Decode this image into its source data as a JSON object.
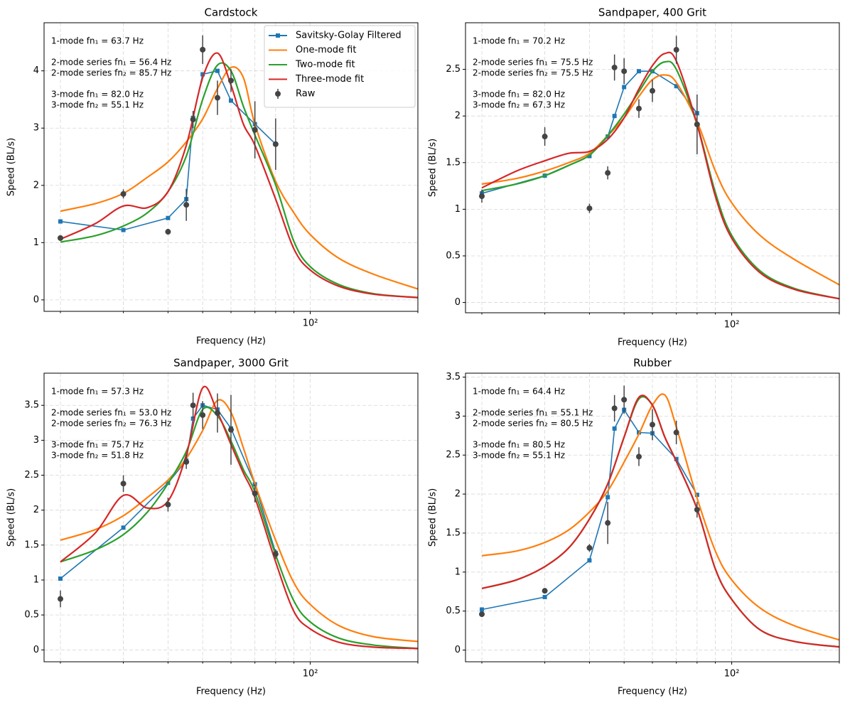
{
  "chart_data": [
    {
      "type": "line",
      "title": "Cardstock",
      "x_label": "Frequency (Hz)",
      "y_label": "Speed (BL/s)",
      "log_x": true,
      "grid": true,
      "legend": "upper right",
      "xlim": [
        18,
        200
      ],
      "xticks": [
        {
          "value": 100,
          "label": "10²"
        }
      ],
      "xminorticks": [
        20,
        30,
        40,
        50,
        60,
        70,
        80,
        90,
        200
      ],
      "ylim": [
        -0.2,
        4.84
      ],
      "yticks": [
        0,
        1,
        2,
        3,
        4
      ],
      "annotations": [
        [
          "1-mode fn₁ = 63.7 Hz"
        ],
        [
          "2-mode series fn₁ = 56.4 Hz",
          "2-mode series fn₂ = 85.7 Hz"
        ],
        [
          "3-mode fn₁ = 82.0 Hz",
          "3-mode fn₂ = 55.1 Hz"
        ]
      ],
      "series": [
        {
          "name": "Savitsky-Golay Filtered",
          "color": "#1f77b4",
          "style": "line-square",
          "x": [
            20,
            30,
            40,
            45,
            47,
            50,
            55,
            60,
            70,
            80
          ],
          "values": [
            1.37,
            1.22,
            1.43,
            1.76,
            3.18,
            3.94,
            4.0,
            3.48,
            3.07,
            2.72
          ]
        },
        {
          "name": "One-mode fit",
          "color": "#ff7f0e",
          "style": "line",
          "x": [
            20,
            25,
            30,
            35,
            40,
            45,
            50,
            55,
            60,
            65,
            70,
            80,
            90,
            100,
            120,
            150,
            200
          ],
          "values": [
            1.55,
            1.68,
            1.86,
            2.14,
            2.41,
            2.76,
            3.16,
            3.69,
            4.06,
            3.88,
            3.07,
            2.07,
            1.52,
            1.14,
            0.73,
            0.45,
            0.19
          ]
        },
        {
          "name": "Two-mode fit",
          "color": "#2ca02c",
          "style": "line",
          "x": [
            20,
            25,
            30,
            35,
            40,
            45,
            50,
            55,
            60,
            65,
            70,
            80,
            90,
            100,
            120,
            150,
            200
          ],
          "values": [
            1.01,
            1.12,
            1.29,
            1.52,
            1.89,
            2.51,
            3.5,
            4.1,
            4.0,
            3.38,
            2.88,
            2.01,
            1.02,
            0.58,
            0.27,
            0.11,
            0.04
          ]
        },
        {
          "name": "Three-mode fit",
          "color": "#d62728",
          "style": "line",
          "x": [
            20,
            25,
            30,
            35,
            40,
            45,
            50,
            55,
            60,
            65,
            70,
            80,
            90,
            100,
            120,
            150,
            200
          ],
          "values": [
            1.06,
            1.33,
            1.64,
            1.61,
            1.89,
            2.7,
            3.88,
            4.31,
            3.75,
            3.07,
            2.7,
            1.76,
            0.89,
            0.52,
            0.24,
            0.1,
            0.04
          ]
        },
        {
          "name": "Raw",
          "color": "#444444",
          "style": "points-errorbar",
          "x": [
            20,
            30,
            40,
            45,
            47,
            50,
            55,
            60,
            70,
            80
          ],
          "values": [
            1.08,
            1.85,
            1.19,
            1.66,
            3.15,
            4.37,
            3.53,
            3.83,
            2.97,
            2.72
          ],
          "errors": [
            0.05,
            0.08,
            0.05,
            0.28,
            0.15,
            0.25,
            0.3,
            0.2,
            0.5,
            0.45
          ]
        }
      ]
    },
    {
      "type": "line",
      "title": "Sandpaper, 400 Grit",
      "x_label": "Frequency (Hz)",
      "y_label": "Speed (BL/s)",
      "log_x": true,
      "grid": true,
      "xlim": [
        18,
        200
      ],
      "xticks": [
        {
          "value": 100,
          "label": "10²"
        }
      ],
      "xminorticks": [
        20,
        30,
        40,
        50,
        60,
        70,
        80,
        90,
        200
      ],
      "ylim": [
        -0.11,
        3.0
      ],
      "yticks": [
        0.0,
        0.5,
        1.0,
        1.5,
        2.0,
        2.5
      ],
      "annotations": [
        [
          "1-mode fn₁ = 70.2 Hz"
        ],
        [
          "2-mode series fn₁ = 75.5 Hz",
          "2-mode series fn₂ = 75.5 Hz"
        ],
        [
          "3-mode fn₁ = 82.0 Hz",
          "3-mode fn₂ = 67.3 Hz"
        ]
      ],
      "series": [
        {
          "color": "#1f77b4",
          "style": "line-square",
          "x": [
            20,
            30,
            40,
            45,
            47,
            50,
            55,
            60,
            70,
            80
          ],
          "values": [
            1.17,
            1.36,
            1.57,
            1.78,
            2.0,
            2.31,
            2.48,
            2.48,
            2.32,
            2.03
          ]
        },
        {
          "color": "#ff7f0e",
          "style": "line",
          "x": [
            20,
            25,
            30,
            35,
            40,
            45,
            50,
            55,
            60,
            65,
            70,
            80,
            90,
            100,
            120,
            150,
            200
          ],
          "values": [
            1.27,
            1.33,
            1.41,
            1.5,
            1.6,
            1.79,
            1.98,
            2.21,
            2.39,
            2.44,
            2.36,
            1.94,
            1.41,
            1.07,
            0.72,
            0.46,
            0.19
          ]
        },
        {
          "color": "#2ca02c",
          "style": "line",
          "x": [
            20,
            25,
            30,
            35,
            40,
            45,
            50,
            55,
            60,
            65,
            70,
            80,
            90,
            100,
            120,
            150,
            200
          ],
          "values": [
            1.2,
            1.27,
            1.36,
            1.47,
            1.58,
            1.79,
            2.02,
            2.26,
            2.48,
            2.58,
            2.5,
            1.91,
            1.18,
            0.72,
            0.34,
            0.15,
            0.04
          ]
        },
        {
          "color": "#d62728",
          "style": "line",
          "x": [
            20,
            25,
            30,
            35,
            40,
            45,
            50,
            55,
            60,
            65,
            70,
            80,
            90,
            100,
            120,
            150,
            200
          ],
          "values": [
            1.23,
            1.41,
            1.52,
            1.6,
            1.62,
            1.75,
            1.98,
            2.29,
            2.54,
            2.67,
            2.59,
            1.91,
            1.14,
            0.69,
            0.32,
            0.14,
            0.04
          ]
        },
        {
          "color": "#444444",
          "style": "points-errorbar",
          "x": [
            20,
            30,
            40,
            45,
            47,
            50,
            55,
            60,
            70,
            80
          ],
          "values": [
            1.14,
            1.78,
            1.01,
            1.39,
            2.52,
            2.48,
            2.08,
            2.27,
            2.71,
            1.91
          ],
          "errors": [
            0.07,
            0.1,
            0.05,
            0.07,
            0.14,
            0.14,
            0.1,
            0.12,
            0.15,
            0.32
          ]
        }
      ]
    },
    {
      "type": "line",
      "title": "Sandpaper, 3000 Grit",
      "x_label": "Frequency (Hz)",
      "y_label": "Speed (BL/s)",
      "log_x": true,
      "grid": true,
      "xlim": [
        18,
        200
      ],
      "xticks": [
        {
          "value": 100,
          "label": "10²"
        }
      ],
      "xminorticks": [
        20,
        30,
        40,
        50,
        60,
        70,
        80,
        90,
        200
      ],
      "ylim": [
        -0.17,
        3.96
      ],
      "yticks": [
        0.0,
        0.5,
        1.0,
        1.5,
        2.0,
        2.5,
        3.0,
        3.5
      ],
      "annotations": [
        [
          "1-mode fn₁ = 57.3 Hz"
        ],
        [
          "2-mode series fn₁ = 53.0 Hz",
          "2-mode series fn₂ = 76.3 Hz"
        ],
        [
          "3-mode fn₁ = 75.7 Hz",
          "3-mode fn₂ = 51.8 Hz"
        ]
      ],
      "series": [
        {
          "color": "#1f77b4",
          "style": "line-square",
          "x": [
            20,
            30,
            40,
            45,
            47,
            50,
            55,
            60,
            70,
            80
          ],
          "values": [
            1.02,
            1.75,
            2.39,
            2.71,
            3.31,
            3.5,
            3.44,
            3.17,
            2.37,
            1.39
          ]
        },
        {
          "color": "#ff7f0e",
          "style": "line",
          "x": [
            20,
            25,
            30,
            35,
            40,
            45,
            50,
            55,
            60,
            65,
            70,
            80,
            90,
            100,
            120,
            150,
            200
          ],
          "values": [
            1.57,
            1.72,
            1.92,
            2.18,
            2.43,
            2.74,
            3.14,
            3.57,
            3.4,
            2.89,
            2.38,
            1.57,
            0.96,
            0.65,
            0.35,
            0.19,
            0.12
          ]
        },
        {
          "color": "#2ca02c",
          "style": "line",
          "x": [
            20,
            25,
            30,
            35,
            40,
            45,
            50,
            55,
            60,
            65,
            70,
            80,
            90,
            100,
            120,
            150,
            200
          ],
          "values": [
            1.26,
            1.43,
            1.65,
            1.97,
            2.38,
            2.84,
            3.44,
            3.35,
            2.99,
            2.58,
            2.26,
            1.36,
            0.7,
            0.4,
            0.17,
            0.07,
            0.02
          ]
        },
        {
          "color": "#d62728",
          "style": "line",
          "x": [
            20,
            25,
            30,
            35,
            40,
            45,
            50,
            55,
            60,
            65,
            70,
            80,
            90,
            100,
            120,
            150,
            200
          ],
          "values": [
            1.26,
            1.67,
            2.21,
            2.03,
            2.13,
            2.79,
            3.75,
            3.4,
            2.94,
            2.53,
            2.18,
            1.26,
            0.55,
            0.3,
            0.11,
            0.04,
            0.02
          ]
        },
        {
          "color": "#444444",
          "style": "points-errorbar",
          "x": [
            20,
            30,
            40,
            45,
            47,
            50,
            55,
            60,
            70,
            80
          ],
          "values": [
            0.73,
            2.38,
            2.08,
            2.69,
            3.5,
            3.36,
            3.39,
            3.15,
            2.24,
            1.37
          ],
          "errors": [
            0.12,
            0.12,
            0.1,
            0.1,
            0.18,
            0.2,
            0.28,
            0.5,
            0.13,
            0.07
          ]
        }
      ]
    },
    {
      "type": "line",
      "title": "Rubber",
      "x_label": "Frequency (Hz)",
      "y_label": "Speed (BL/s)",
      "log_x": true,
      "grid": true,
      "xlim": [
        18,
        200
      ],
      "xticks": [
        {
          "value": 100,
          "label": "10²"
        }
      ],
      "xminorticks": [
        20,
        30,
        40,
        50,
        60,
        70,
        80,
        90,
        200
      ],
      "ylim": [
        -0.15,
        3.55
      ],
      "yticks": [
        0.0,
        0.5,
        1.0,
        1.5,
        2.0,
        2.5,
        3.0,
        3.5
      ],
      "annotations": [
        [
          "1-mode fn₁ = 64.4 Hz"
        ],
        [
          "2-mode series fn₁ = 55.1 Hz",
          "2-mode series fn₂ = 80.5 Hz"
        ],
        [
          "3-mode fn₁ = 80.5 Hz",
          "3-mode fn₂ = 55.1 Hz"
        ]
      ],
      "series": [
        {
          "color": "#1f77b4",
          "style": "line-square",
          "x": [
            20,
            30,
            40,
            45,
            47,
            50,
            55,
            60,
            70,
            80
          ],
          "values": [
            0.52,
            0.68,
            1.15,
            1.96,
            2.84,
            3.08,
            2.79,
            2.78,
            2.45,
            1.99
          ]
        },
        {
          "color": "#ff7f0e",
          "style": "line",
          "x": [
            20,
            25,
            30,
            35,
            40,
            45,
            50,
            55,
            60,
            65,
            70,
            80,
            90,
            100,
            120,
            150,
            200
          ],
          "values": [
            1.21,
            1.27,
            1.38,
            1.54,
            1.77,
            2.04,
            2.41,
            2.77,
            3.14,
            3.27,
            2.86,
            1.95,
            1.27,
            0.9,
            0.54,
            0.31,
            0.13
          ]
        },
        {
          "color": "#2ca02c",
          "style": "line",
          "x": [
            20,
            25,
            30,
            35,
            40,
            45,
            50,
            55,
            60,
            65,
            70,
            80,
            90,
            100,
            120,
            150,
            200
          ],
          "values": [
            0.79,
            0.9,
            1.07,
            1.31,
            1.68,
            2.13,
            2.73,
            3.22,
            3.14,
            2.73,
            2.42,
            1.81,
            1.04,
            0.65,
            0.26,
            0.11,
            0.04
          ]
        },
        {
          "color": "#d62728",
          "style": "line",
          "x": [
            20,
            25,
            30,
            35,
            40,
            45,
            50,
            55,
            60,
            65,
            70,
            80,
            90,
            100,
            120,
            150,
            200
          ],
          "values": [
            0.79,
            0.9,
            1.07,
            1.31,
            1.68,
            2.13,
            2.73,
            3.24,
            3.14,
            2.73,
            2.42,
            1.81,
            1.04,
            0.65,
            0.26,
            0.11,
            0.04
          ]
        },
        {
          "color": "#444444",
          "style": "points-errorbar",
          "x": [
            20,
            30,
            40,
            45,
            47,
            50,
            55,
            60,
            70,
            80
          ],
          "values": [
            0.46,
            0.76,
            1.31,
            1.63,
            3.1,
            3.21,
            2.48,
            2.89,
            2.79,
            1.8
          ],
          "errors": [
            0.02,
            0.03,
            0.05,
            0.27,
            0.17,
            0.18,
            0.12,
            0.2,
            0.15,
            0.1
          ]
        }
      ]
    }
  ]
}
